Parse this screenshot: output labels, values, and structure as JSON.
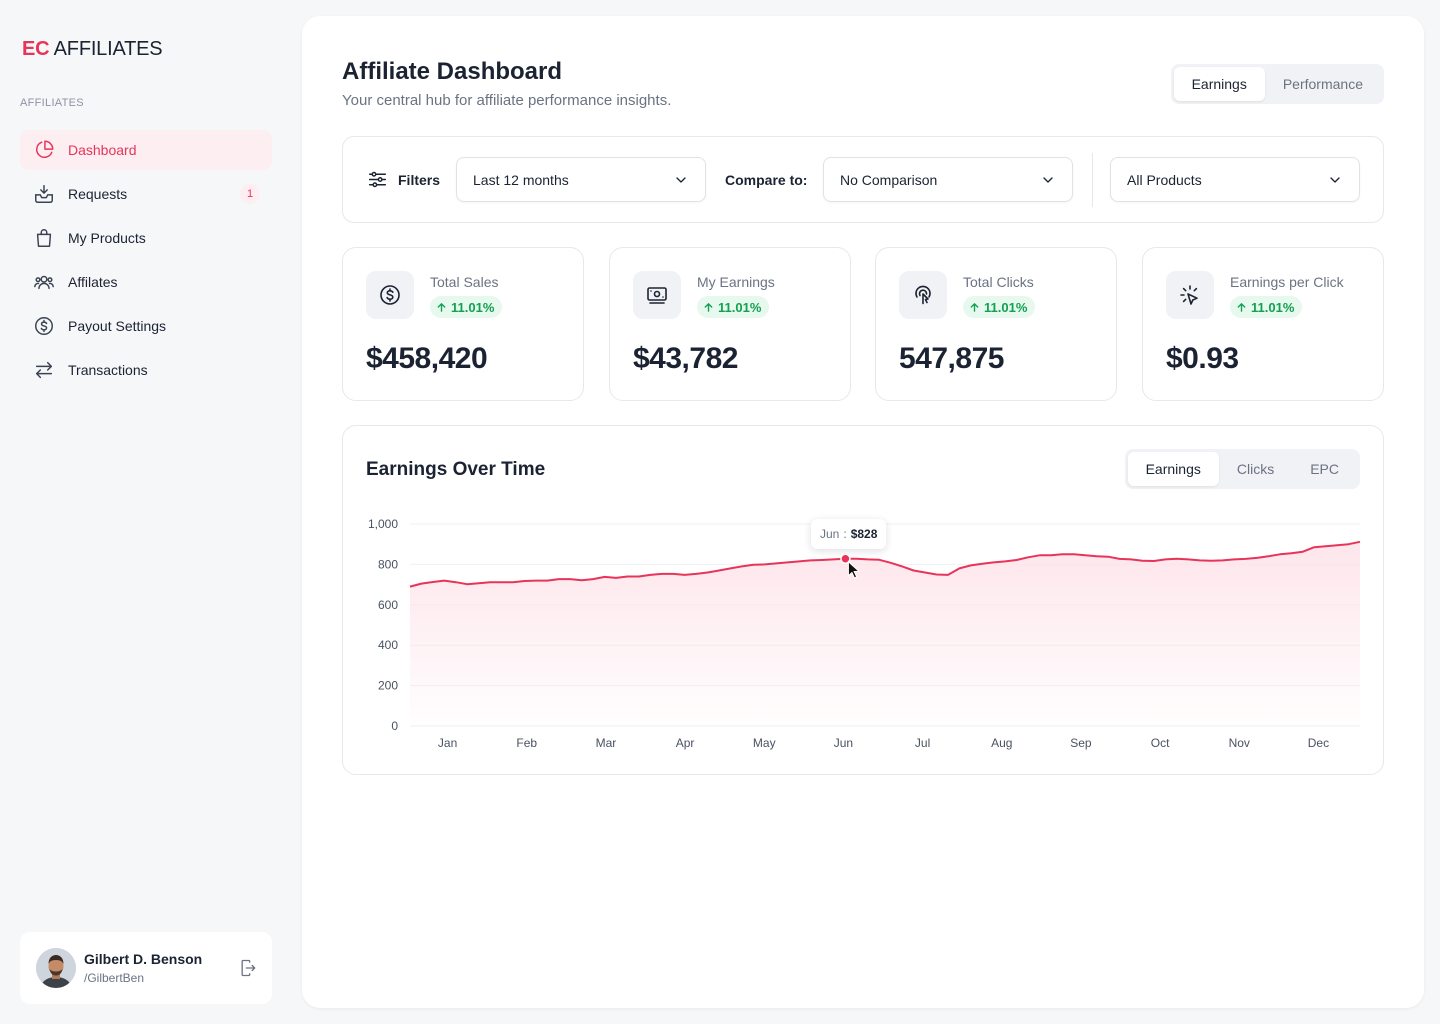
{
  "brand": {
    "prefix": "EC",
    "name": "AFFILIATES"
  },
  "sidebar": {
    "section_label": "AFFILIATES",
    "items": [
      {
        "label": "Dashboard",
        "icon": "pie-chart-icon",
        "active": true
      },
      {
        "label": "Requests",
        "icon": "inbox-icon",
        "badge": "1"
      },
      {
        "label": "My Products",
        "icon": "shopping-bag-icon"
      },
      {
        "label": "Affilates",
        "icon": "users-icon"
      },
      {
        "label": "Payout Settings",
        "icon": "dollar-circle-icon"
      },
      {
        "label": "Transactions",
        "icon": "arrows-swap-icon"
      }
    ],
    "user": {
      "name": "Gilbert D. Benson",
      "handle": "/GilbertBen"
    }
  },
  "header": {
    "title": "Affiliate Dashboard",
    "subtitle": "Your central hub for affiliate performance insights.",
    "tabs": [
      {
        "label": "Earnings",
        "active": true
      },
      {
        "label": "Performance"
      }
    ]
  },
  "filters": {
    "label": "Filters",
    "period": "Last 12 months",
    "compare_label": "Compare to:",
    "compare": "No Comparison",
    "products": "All Products"
  },
  "stats": [
    {
      "label": "Total Sales",
      "delta": "11.01%",
      "value": "$458,420",
      "icon": "dollar-circle-icon"
    },
    {
      "label": "My Earnings",
      "delta": "11.01%",
      "value": "$43,782",
      "icon": "banknote-icon"
    },
    {
      "label": "Total Clicks",
      "delta": "11.01%",
      "value": "547,875",
      "icon": "touch-icon"
    },
    {
      "label": "Earnings per Click",
      "delta": "11.01%",
      "value": "$0.93",
      "icon": "cursor-click-icon"
    }
  ],
  "chart": {
    "title": "Earnings Over Time",
    "tabs": [
      {
        "label": "Earnings",
        "active": true
      },
      {
        "label": "Clicks"
      },
      {
        "label": "EPC"
      }
    ],
    "tooltip": {
      "label": "Jun",
      "sep": ":",
      "value": "$828"
    },
    "colors": {
      "line": "#e8345a",
      "fill": "#fde4ea"
    }
  },
  "chart_data": {
    "type": "area",
    "xlabel": "",
    "ylabel": "",
    "x_ticks": [
      "Jan",
      "Feb",
      "Mar",
      "Apr",
      "May",
      "Jun",
      "Jul",
      "Aug",
      "Sep",
      "Oct",
      "Nov",
      "Dec"
    ],
    "y_ticks": [
      "0",
      "200",
      "400",
      "600",
      "800",
      "1,000"
    ],
    "ylim": [
      0,
      1000
    ],
    "grid": true,
    "series": [
      {
        "values": [
          690,
          705,
          713,
          720,
          712,
          702,
          707,
          712,
          712,
          712,
          718,
          720,
          720,
          727,
          727,
          722,
          727,
          738,
          733,
          740,
          740,
          748,
          753,
          753,
          748,
          753,
          760,
          770,
          780,
          790,
          798,
          800,
          805,
          810,
          815,
          820,
          822,
          825,
          828,
          828,
          825,
          823,
          808,
          790,
          770,
          760,
          750,
          748,
          780,
          795,
          803,
          810,
          815,
          822,
          835,
          845,
          845,
          850,
          850,
          845,
          840,
          838,
          827,
          825,
          818,
          817,
          825,
          828,
          825,
          820,
          818,
          820,
          825,
          827,
          832,
          840,
          850,
          855,
          863,
          885,
          890,
          895,
          900,
          912
        ]
      }
    ],
    "highlight": {
      "x": "Jun",
      "y": 828
    }
  }
}
